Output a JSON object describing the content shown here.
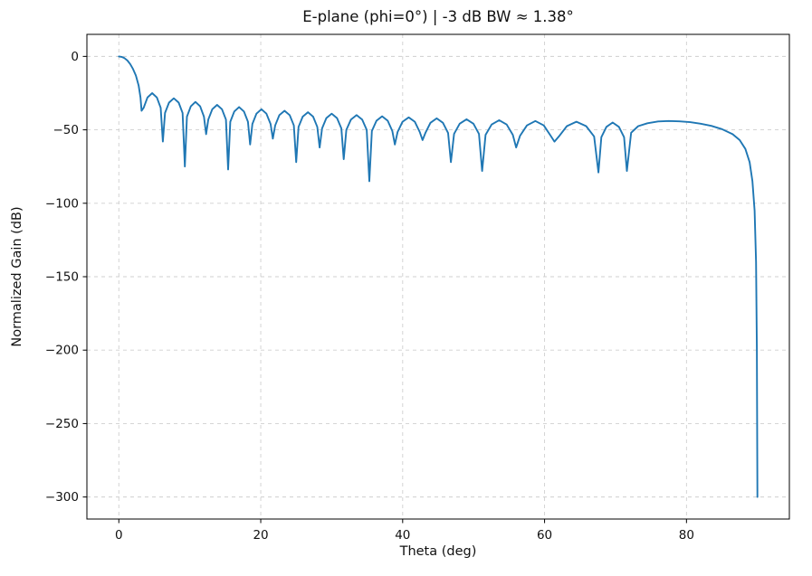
{
  "chart_data": {
    "type": "line",
    "title": "E-plane (phi=0°)  |  -3 dB BW ≈ 1.38°",
    "xlabel": "Theta (deg)",
    "ylabel": "Normalized Gain (dB)",
    "xlim": [
      -4.5,
      94.5
    ],
    "ylim": [
      -315,
      15
    ],
    "xticks": [
      0,
      20,
      40,
      60,
      80
    ],
    "yticks": [
      0,
      -50,
      -100,
      -150,
      -200,
      -250,
      -300
    ],
    "grid": true,
    "grid_style": "dashed",
    "grid_color": "#cfcfcf",
    "line_color": "#1f77b4",
    "line_width": 1.9,
    "legend": "none",
    "series": [
      {
        "name": "E-plane normalized gain",
        "points": [
          [
            0,
            0
          ],
          [
            0.4,
            -0.3
          ],
          [
            0.8,
            -1.2
          ],
          [
            1.2,
            -2.8
          ],
          [
            1.6,
            -5.2
          ],
          [
            2.0,
            -8.5
          ],
          [
            2.4,
            -13
          ],
          [
            2.8,
            -20
          ],
          [
            3.05,
            -28
          ],
          [
            3.2,
            -37
          ],
          [
            3.5,
            -35
          ],
          [
            4.04,
            -28
          ],
          [
            4.7,
            -25
          ],
          [
            5.36,
            -28
          ],
          [
            5.9,
            -35
          ],
          [
            6.2,
            -58
          ],
          [
            6.51,
            -38.5
          ],
          [
            7.07,
            -31.5
          ],
          [
            7.75,
            -28.5
          ],
          [
            8.43,
            -31.5
          ],
          [
            8.99,
            -38.5
          ],
          [
            9.3,
            -75
          ],
          [
            9.6,
            -41
          ],
          [
            10.14,
            -34
          ],
          [
            10.8,
            -31
          ],
          [
            11.46,
            -34
          ],
          [
            12.0,
            -41
          ],
          [
            12.3,
            -53
          ],
          [
            12.61,
            -43
          ],
          [
            13.17,
            -36
          ],
          [
            13.85,
            -33
          ],
          [
            14.53,
            -36
          ],
          [
            15.09,
            -43
          ],
          [
            15.4,
            -77
          ],
          [
            15.71,
            -44.5
          ],
          [
            16.27,
            -37.5
          ],
          [
            16.95,
            -34.5
          ],
          [
            17.63,
            -37.5
          ],
          [
            18.19,
            -44.5
          ],
          [
            18.5,
            -60
          ],
          [
            18.82,
            -46
          ],
          [
            19.4,
            -39
          ],
          [
            20.1,
            -36
          ],
          [
            20.8,
            -39
          ],
          [
            21.38,
            -46
          ],
          [
            21.7,
            -56
          ],
          [
            22.03,
            -47
          ],
          [
            22.62,
            -40
          ],
          [
            23.35,
            -37
          ],
          [
            24.08,
            -40
          ],
          [
            24.67,
            -47
          ],
          [
            25.0,
            -72
          ],
          [
            25.33,
            -48
          ],
          [
            25.92,
            -41
          ],
          [
            26.65,
            -38
          ],
          [
            27.38,
            -41
          ],
          [
            27.97,
            -48
          ],
          [
            28.3,
            -62
          ],
          [
            28.64,
            -49
          ],
          [
            29.25,
            -42
          ],
          [
            30.0,
            -39
          ],
          [
            30.75,
            -42
          ],
          [
            31.36,
            -49
          ],
          [
            31.7,
            -70
          ],
          [
            32.06,
            -50
          ],
          [
            32.71,
            -43
          ],
          [
            33.5,
            -40
          ],
          [
            34.29,
            -43
          ],
          [
            34.94,
            -50
          ],
          [
            35.3,
            -85
          ],
          [
            35.66,
            -50.8
          ],
          [
            36.31,
            -43.8
          ],
          [
            37.1,
            -40.8
          ],
          [
            37.89,
            -43.8
          ],
          [
            38.54,
            -50.8
          ],
          [
            38.9,
            -60
          ],
          [
            39.29,
            -51.5
          ],
          [
            39.99,
            -44.5
          ],
          [
            40.85,
            -41.5
          ],
          [
            41.71,
            -44.5
          ],
          [
            42.41,
            -51.5
          ],
          [
            42.8,
            -57
          ],
          [
            43.2,
            -52.2
          ],
          [
            43.92,
            -45.2
          ],
          [
            44.8,
            -42.2
          ],
          [
            45.68,
            -45.2
          ],
          [
            46.4,
            -52.2
          ],
          [
            46.8,
            -72
          ],
          [
            47.24,
            -52.8
          ],
          [
            48.03,
            -45.8
          ],
          [
            49.0,
            -42.8
          ],
          [
            49.97,
            -45.8
          ],
          [
            50.76,
            -52.8
          ],
          [
            51.2,
            -78
          ],
          [
            51.68,
            -53.4
          ],
          [
            52.54,
            -46.4
          ],
          [
            53.6,
            -43.4
          ],
          [
            54.66,
            -46.4
          ],
          [
            55.52,
            -53.4
          ],
          [
            56.0,
            -62
          ],
          [
            56.54,
            -54
          ],
          [
            57.51,
            -47
          ],
          [
            58.7,
            -44
          ],
          [
            59.89,
            -47
          ],
          [
            60.86,
            -54
          ],
          [
            61.4,
            -58
          ],
          [
            62.02,
            -54.5
          ],
          [
            63.14,
            -47.5
          ],
          [
            64.5,
            -44.5
          ],
          [
            65.86,
            -47.5
          ],
          [
            66.98,
            -54.5
          ],
          [
            67.6,
            -79
          ],
          [
            68.0,
            -55
          ],
          [
            68.72,
            -48
          ],
          [
            69.6,
            -45
          ],
          [
            70.48,
            -48
          ],
          [
            71.2,
            -55
          ],
          [
            71.6,
            -78
          ],
          [
            72.2,
            -52
          ],
          [
            73.2,
            -47.5
          ],
          [
            74.5,
            -45.5
          ],
          [
            76,
            -44.3
          ],
          [
            77.5,
            -44
          ],
          [
            79,
            -44.2
          ],
          [
            80.5,
            -44.8
          ],
          [
            82,
            -45.8
          ],
          [
            83.5,
            -47.3
          ],
          [
            85,
            -49.5
          ],
          [
            86.5,
            -53
          ],
          [
            87.5,
            -57
          ],
          [
            88.3,
            -63
          ],
          [
            88.9,
            -72
          ],
          [
            89.3,
            -85
          ],
          [
            89.6,
            -105
          ],
          [
            89.8,
            -140
          ],
          [
            89.92,
            -200
          ],
          [
            90,
            -300
          ]
        ]
      }
    ]
  }
}
